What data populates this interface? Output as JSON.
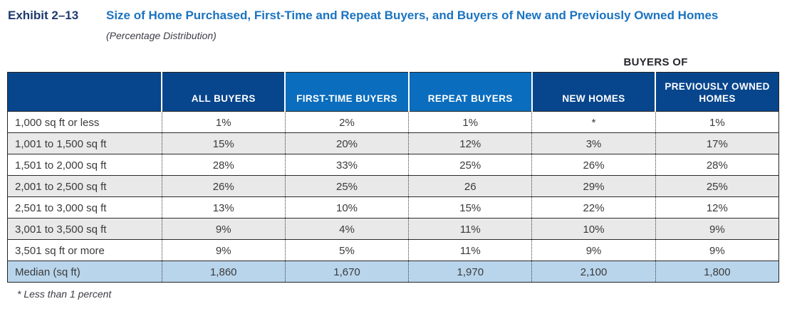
{
  "exhibit": {
    "label": "Exhibit 2–13",
    "title": "Size of Home Purchased, First-Time and Repeat Buyers, and Buyers of New and Previously Owned Homes",
    "subtitle": "(Percentage Distribution)"
  },
  "table": {
    "group_header": "BUYERS OF",
    "columns": {
      "all_buyers": "ALL BUYERS",
      "first_time_buyers": "FIRST-TIME BUYERS",
      "repeat_buyers": "REPEAT BUYERS",
      "new_homes": "NEW HOMES",
      "previously_owned_homes": "PREVIOUSLY OWNED HOMES"
    },
    "rows": [
      {
        "label": "1,000 sq ft or less",
        "values": [
          "1%",
          "2%",
          "1%",
          "*",
          "1%"
        ]
      },
      {
        "label": "1,001 to 1,500 sq ft",
        "values": [
          "15%",
          "20%",
          "12%",
          "3%",
          "17%"
        ]
      },
      {
        "label": "1,501 to 2,000 sq ft",
        "values": [
          "28%",
          "33%",
          "25%",
          "26%",
          "28%"
        ]
      },
      {
        "label": "2,001 to 2,500 sq ft",
        "values": [
          "26%",
          "25%",
          "26",
          "29%",
          "25%"
        ]
      },
      {
        "label": "2,501 to 3,000 sq ft",
        "values": [
          "13%",
          "10%",
          "15%",
          "22%",
          "12%"
        ]
      },
      {
        "label": "3,001 to 3,500 sq ft",
        "values": [
          "9%",
          "4%",
          "11%",
          "10%",
          "9%"
        ]
      },
      {
        "label": "3,501 sq ft or more",
        "values": [
          "9%",
          "5%",
          "11%",
          "9%",
          "9%"
        ]
      },
      {
        "label": "Median (sq ft)",
        "values": [
          "1,860",
          "1,670",
          "1,970",
          "2,100",
          "1,800"
        ]
      }
    ],
    "footnote": "* Less than 1 percent"
  },
  "colors": {
    "header_navy": "#07458c",
    "header_bright_blue": "#0a6dbd",
    "median_row_blue": "#b9d5ec",
    "alt_row_gray": "#e9e9e9",
    "title_blue": "#1a73c1",
    "exhibit_label_navy": "#1e3a6e",
    "border_dark": "#232323"
  }
}
